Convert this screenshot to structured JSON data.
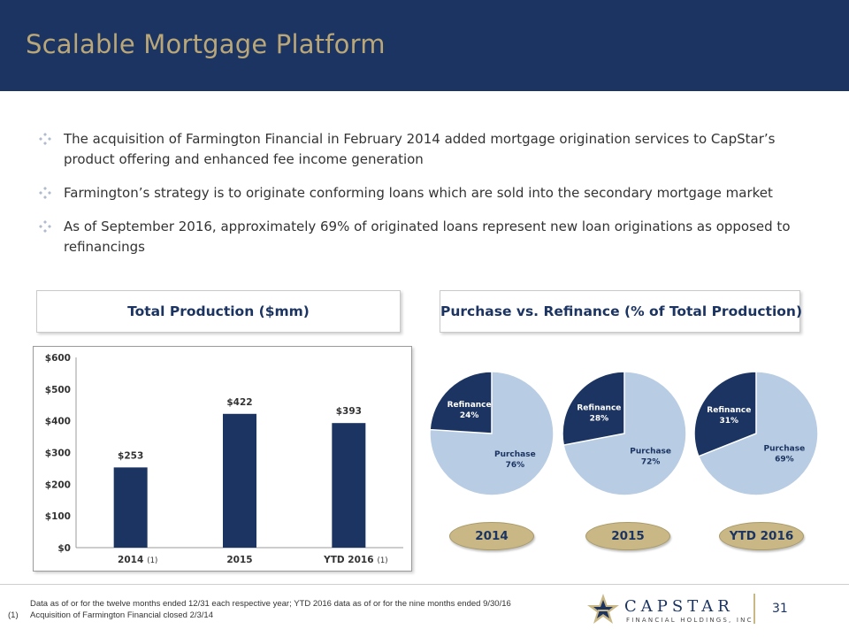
{
  "header": {
    "title": "Scalable Mortgage Platform"
  },
  "bullets": [
    "The acquisition of Farmington Financial in February 2014 added mortgage origination services to CapStar’s product offering and enhanced fee income generation",
    "Farmington’s strategy is to originate conforming loans which are sold into the secondary mortgage market",
    "As of September 2016, approximately 69% of originated loans represent new loan originations as opposed to refinancings"
  ],
  "panels": {
    "left_title": "Total Production ($mm)",
    "right_title": "Purchase vs. Refinance (% of Total Production)"
  },
  "chart_data": [
    {
      "type": "bar",
      "title": "Total Production ($mm)",
      "categories": [
        "2014",
        "2015",
        "YTD 2016"
      ],
      "category_notes": [
        "(1)",
        "",
        "(1)"
      ],
      "values": [
        253,
        422,
        393
      ],
      "value_labels": [
        "$253",
        "$422",
        "$393"
      ],
      "yticks": [
        "$0",
        "$100",
        "$200",
        "$300",
        "$400",
        "$500",
        "$600"
      ],
      "ylim": [
        0,
        600
      ],
      "grid": false,
      "colors": {
        "bar": "#1c3461"
      }
    },
    {
      "type": "pie",
      "title": "Purchase vs. Refinance (% of Total Production)",
      "charts": [
        {
          "year": "2014",
          "slices": [
            {
              "label": "Purchase",
              "value": 76,
              "value_label": "76%"
            },
            {
              "label": "Refinance",
              "value": 24,
              "value_label": "24%"
            }
          ]
        },
        {
          "year": "2015",
          "slices": [
            {
              "label": "Purchase",
              "value": 72,
              "value_label": "72%"
            },
            {
              "label": "Refinance",
              "value": 28,
              "value_label": "28%"
            }
          ]
        },
        {
          "year": "YTD 2016",
          "slices": [
            {
              "label": "Purchase",
              "value": 69,
              "value_label": "69%"
            },
            {
              "label": "Refinance",
              "value": 31,
              "value_label": "31%"
            }
          ]
        }
      ],
      "colors": {
        "purchase": "#b8cce4",
        "refinance": "#1c3461"
      }
    }
  ],
  "footer": {
    "note": "Data as of or for the twelve months ended 12/31 each respective year; YTD 2016 data as of or for the nine months ended 9/30/16",
    "footnote_marker": "(1)",
    "footnote": "Acquisition of Farmington Financial closed 2/3/14",
    "page_number": "31"
  },
  "logo": {
    "wordmark": "CAPSTAR",
    "subtitle": "FINANCIAL HOLDINGS, INC."
  },
  "colors": {
    "navy": "#1c3461",
    "gold": "#c9b886",
    "title_gold": "#b9a779",
    "light_blue": "#b8cce4"
  }
}
